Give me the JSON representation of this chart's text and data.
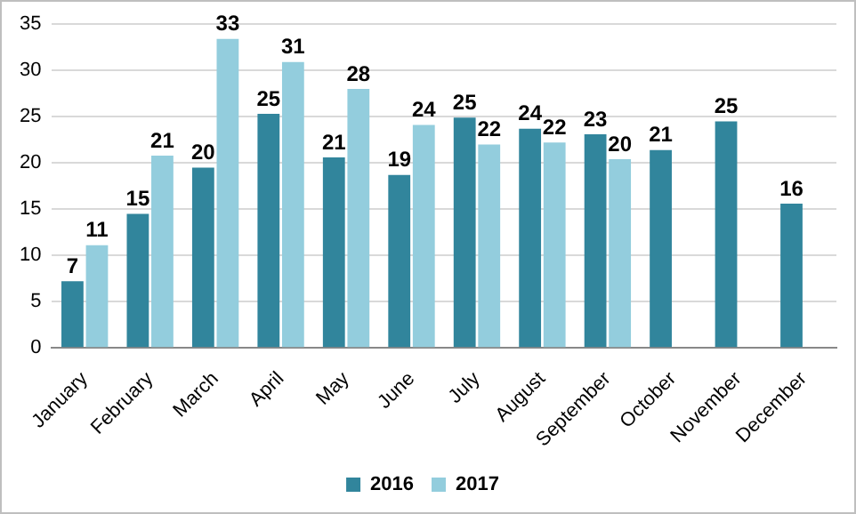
{
  "chart_data": {
    "type": "bar",
    "categories": [
      "January",
      "February",
      "March",
      "April",
      "May",
      "June",
      "July",
      "August",
      "September",
      "October",
      "November",
      "December"
    ],
    "series": [
      {
        "name": "2016",
        "color": "#31859c",
        "values": [
          7.2,
          14.5,
          19.5,
          25.3,
          20.6,
          18.7,
          24.9,
          23.7,
          23.1,
          21.4,
          24.5,
          15.6
        ],
        "value_labels": [
          "7",
          "15",
          "20",
          "25",
          "21",
          "19",
          "25",
          "24",
          "23",
          "21",
          "25",
          "16"
        ]
      },
      {
        "name": "2017",
        "color": "#93cddd",
        "values": [
          11.1,
          20.8,
          33.4,
          30.9,
          28,
          24.1,
          22,
          22.2,
          20.4,
          null,
          null,
          null
        ],
        "value_labels": [
          "11",
          "21",
          "33",
          "31",
          "28",
          "24",
          "22",
          "22",
          "20",
          null,
          null,
          null
        ]
      }
    ],
    "ylim": [
      0,
      35
    ],
    "yticks": [
      0,
      5,
      10,
      15,
      20,
      25,
      30,
      35
    ],
    "grid": "y",
    "legend": "bottom"
  }
}
